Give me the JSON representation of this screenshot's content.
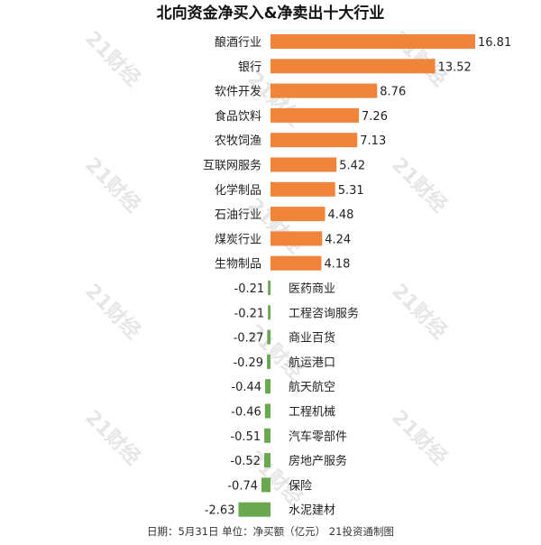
{
  "chart_data": {
    "type": "bar",
    "orientation": "horizontal",
    "title": "北向资金净买入&净卖出十大行业",
    "footer": "日期：5月31日  单位：净买额（亿元）  21投资通制图",
    "watermark": "21财经",
    "categories": [
      "酿酒行业",
      "银行",
      "软件开发",
      "食品饮料",
      "农牧饲渔",
      "互联网服务",
      "化学制品",
      "石油行业",
      "煤炭行业",
      "生物制品",
      "医药商业",
      "工程咨询服务",
      "商业百货",
      "航运港口",
      "航天航空",
      "工程机械",
      "汽车零部件",
      "房地产服务",
      "保险",
      "水泥建材"
    ],
    "values": [
      16.81,
      13.52,
      8.76,
      7.26,
      7.13,
      5.42,
      5.31,
      4.48,
      4.24,
      4.18,
      -0.21,
      -0.21,
      -0.27,
      -0.29,
      -0.44,
      -0.46,
      -0.51,
      -0.52,
      -0.74,
      -2.63
    ],
    "value_labels": [
      "16.81",
      "13.52",
      "8.76",
      "7.26",
      "7.13",
      "5.42",
      "5.31",
      "4.48",
      "4.24",
      "4.18",
      "-0.21",
      "-0.21",
      "-0.27",
      "-0.29",
      "-0.44",
      "-0.46",
      "-0.51",
      "-0.52",
      "-0.74",
      "-2.63"
    ],
    "colors": {
      "positive": "#f0843a",
      "negative": "#6aa84f",
      "text": "#222222"
    },
    "grid": false,
    "legend": "none"
  }
}
